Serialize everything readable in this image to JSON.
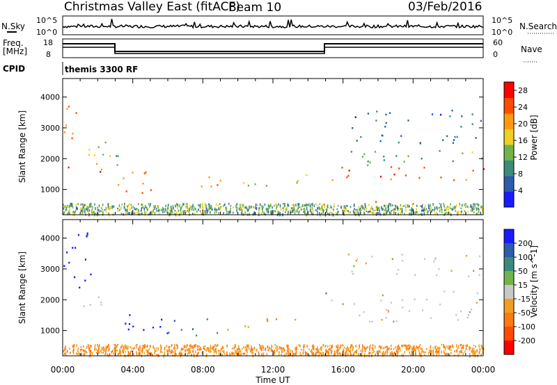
{
  "header": {
    "station": "Christmas Valley East (fitACF)",
    "beam": "Beam 10",
    "date": "03/Feb/2016"
  },
  "top_panels": {
    "nsky_label": "N.Sky",
    "nsearch_label": "N.Search",
    "nsky_ticks": [
      "10^5",
      "10^0"
    ],
    "nsearch_ticks": [
      "10^5",
      "10^0"
    ],
    "freq_label_1": "Freq.",
    "freq_label_2": "[MHz]",
    "freq_ticks": [
      "18",
      "8"
    ],
    "nave_label": "Nave",
    "nave_ticks": [
      "60",
      "0"
    ],
    "cpid_label": "CPID",
    "cpid_text": "themis 3300 RF"
  },
  "chart_data": [
    {
      "type": "heatmap",
      "panel": "power",
      "ylabel": "Slant Range [km]",
      "xlabel": "Time UT",
      "x_ticks": [
        "00:00",
        "04:00",
        "08:00",
        "12:00",
        "16:00",
        "20:00",
        "00:00"
      ],
      "y_ticks": [
        1000,
        2000,
        3000,
        4000
      ],
      "ylim": [
        180,
        4600
      ],
      "colorbar": {
        "label": "Power [dB]",
        "ticks": [
          4,
          8,
          12,
          16,
          20,
          24,
          28
        ],
        "range": [
          0,
          30
        ],
        "colors": [
          "#1a1aff",
          "#2d5cab",
          "#3c8a7c",
          "#6fb34a",
          "#f0d020",
          "#ff9a10",
          "#ff4a00",
          "#ff0000"
        ]
      },
      "echo_regions": [
        {
          "t0": 0.0,
          "t1": 2.2,
          "r0": 1550,
          "r1": 2000,
          "level": 25
        },
        {
          "t0": 0.0,
          "t1": 1.2,
          "r0": 2600,
          "r1": 4000,
          "level": 22
        },
        {
          "t0": 1.2,
          "t1": 2.5,
          "r0": 2000,
          "r1": 2600,
          "level": 18
        },
        {
          "t0": 2.0,
          "t1": 3.2,
          "r0": 1300,
          "r1": 2700,
          "level": 12
        },
        {
          "t0": 3.0,
          "t1": 6.0,
          "r0": 900,
          "r1": 1700,
          "level": 22
        },
        {
          "t0": 6.8,
          "t1": 9.0,
          "r0": 1000,
          "r1": 1600,
          "level": 20
        },
        {
          "t0": 10.0,
          "t1": 14.5,
          "r0": 1100,
          "r1": 1500,
          "level": 16
        },
        {
          "t0": 15.0,
          "t1": 24.0,
          "r0": 1300,
          "r1": 1800,
          "level": 24
        },
        {
          "t0": 15.0,
          "t1": 24.0,
          "r0": 1800,
          "r1": 2300,
          "level": 12
        },
        {
          "t0": 16.0,
          "t1": 24.0,
          "r0": 2500,
          "r1": 3600,
          "level": 7
        },
        {
          "t0": 17.5,
          "t1": 17.9,
          "r0": 300,
          "r1": 700,
          "level": 28
        }
      ]
    },
    {
      "type": "heatmap",
      "panel": "velocity",
      "ylabel": "Slant Range [km]",
      "xlabel": "Time UT",
      "x_ticks": [
        "00:00",
        "04:00",
        "08:00",
        "12:00",
        "16:00",
        "20:00",
        "00:00"
      ],
      "y_ticks": [
        1000,
        2000,
        3000,
        4000
      ],
      "ylim": [
        180,
        4600
      ],
      "colorbar": {
        "label": "Velocity [m s^-1]",
        "ticks": [
          200,
          100,
          50,
          15,
          -15,
          -50,
          -100,
          -200
        ],
        "range": [
          -250,
          250
        ],
        "colors": [
          "#1a1aff",
          "#2d5cab",
          "#3c8a7c",
          "#6fb34a",
          "#c8c8c8",
          "#f0a020",
          "#ff7a10",
          "#ff4a00",
          "#ff0000"
        ]
      },
      "echo_regions": [
        {
          "t0": 0.0,
          "t1": 2.0,
          "r0": 2400,
          "r1": 4200,
          "level": 200
        },
        {
          "t0": 0.0,
          "t1": 2.5,
          "r0": 1700,
          "r1": 2200,
          "level": 0
        },
        {
          "t0": 3.0,
          "t1": 6.0,
          "r0": 850,
          "r1": 1700,
          "level": 220
        },
        {
          "t0": 6.0,
          "t1": 9.0,
          "r0": 850,
          "r1": 1400,
          "level": 60
        },
        {
          "t0": 9.0,
          "t1": 11.5,
          "r0": 1000,
          "r1": 1300,
          "level": -30
        },
        {
          "t0": 11.5,
          "t1": 14.5,
          "r0": 1100,
          "r1": 1400,
          "level": -60
        },
        {
          "t0": 14.6,
          "t1": 15.0,
          "r0": 1500,
          "r1": 2300,
          "level": 40
        },
        {
          "t0": 15.0,
          "t1": 24.0,
          "r0": 1300,
          "r1": 2300,
          "level": 0
        },
        {
          "t0": 16.0,
          "t1": 24.0,
          "r0": 2700,
          "r1": 3500,
          "level": 0
        },
        {
          "t0": 2.0,
          "t1": 24.0,
          "r0": 200,
          "r1": 500,
          "level": -60
        }
      ]
    }
  ]
}
